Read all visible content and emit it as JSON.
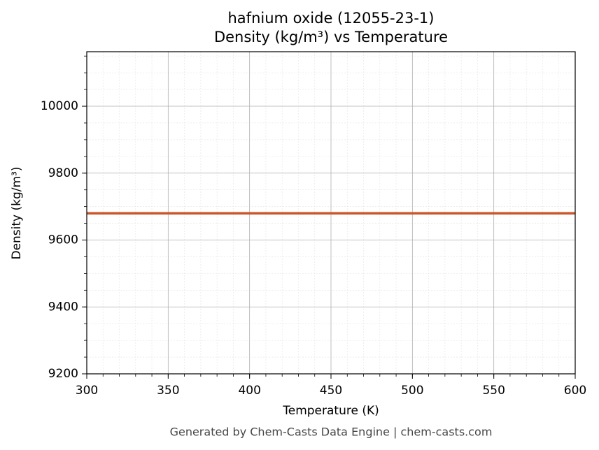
{
  "chart_data": {
    "type": "line",
    "title": "hafnium oxide (12055-23-1)",
    "subtitle": "Density (kg/m³) vs Temperature",
    "x_label": "Temperature (K)",
    "y_label": "Density (kg/m³)",
    "footer": "Generated by Chem-Casts Data Engine | chem-casts.com",
    "x": [
      300,
      600
    ],
    "series": [
      {
        "name": "Density",
        "color": "#cc5529",
        "values": [
          9680,
          9680
        ]
      }
    ],
    "xlim": [
      300,
      600
    ],
    "xticks": [
      300,
      350,
      400,
      450,
      500,
      550,
      600
    ],
    "ylim": [
      9200,
      10163
    ],
    "yticks": [
      9200,
      9400,
      9600,
      9800,
      10000
    ],
    "grid": true,
    "minor_grid": true,
    "x_minor_step": 10,
    "y_minor_step": 50
  }
}
